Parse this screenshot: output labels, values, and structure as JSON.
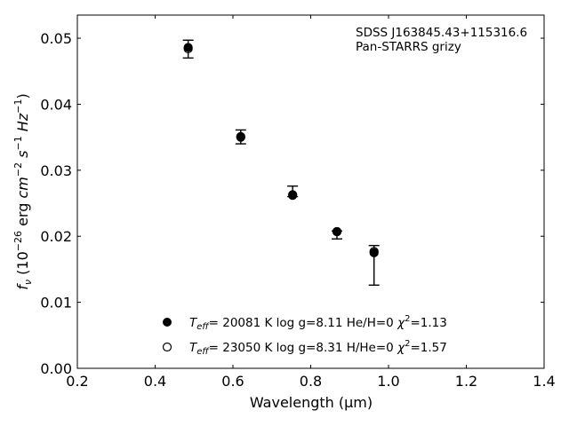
{
  "chart_data": {
    "type": "scatter",
    "xlabel": "Wavelength (μm)",
    "ylabel_parts": {
      "f": "f",
      "nu": "ν",
      "open": " (10",
      "exp1": "−26",
      "mid": " erg ",
      "cm": "cm",
      "exp2": "−2",
      "s": " s",
      "exp3": "−1",
      "hz": " Hz",
      "exp4": "−1",
      "close": ")"
    },
    "xlim": [
      0.2,
      1.4
    ],
    "ylim": [
      0.0,
      0.0535
    ],
    "xticks": [
      {
        "value": 0.2,
        "label": "0.2"
      },
      {
        "value": 0.4,
        "label": "0.4"
      },
      {
        "value": 0.6,
        "label": "0.6"
      },
      {
        "value": 0.8,
        "label": "0.8"
      },
      {
        "value": 1.0,
        "label": "1.0"
      },
      {
        "value": 1.2,
        "label": "1.2"
      },
      {
        "value": 1.4,
        "label": "1.4"
      }
    ],
    "yticks": [
      {
        "value": 0.0,
        "label": "0.00"
      },
      {
        "value": 0.01,
        "label": "0.01"
      },
      {
        "value": 0.02,
        "label": "0.02"
      },
      {
        "value": 0.03,
        "label": "0.03"
      },
      {
        "value": 0.04,
        "label": "0.04"
      },
      {
        "value": 0.05,
        "label": "0.05"
      }
    ],
    "annotation": [
      "SDSS J163845.43+115316.6",
      "Pan-STARRS grizy"
    ],
    "observed": [
      {
        "x": 0.4849,
        "y": 0.0483,
        "ylow": 0.047,
        "yhigh": 0.0497
      },
      {
        "x": 0.6201,
        "y": 0.035,
        "ylow": 0.034,
        "yhigh": 0.0361
      },
      {
        "x": 0.7535,
        "y": 0.0262,
        "ylow": 0.026,
        "yhigh": 0.0276
      },
      {
        "x": 0.8674,
        "y": 0.0205,
        "ylow": 0.0196,
        "yhigh": 0.0208
      },
      {
        "x": 0.9628,
        "y": 0.0177,
        "ylow": 0.0126,
        "yhigh": 0.0186
      }
    ],
    "series": [
      {
        "marker": "filled",
        "label": {
          "T": "T",
          "sub": "eff",
          "rest": "= 20081 K  log g=8.11  He/H=0  ",
          "chi": "χ",
          "sup": "2",
          "val": "=1.13"
        },
        "x": [
          0.4849,
          0.6201,
          0.7535,
          0.8674,
          0.9628
        ],
        "y": [
          0.0486,
          0.0351,
          0.0262,
          0.0207,
          0.0175
        ]
      },
      {
        "marker": "open",
        "label": {
          "T": "T",
          "sub": "eff",
          "rest": "= 23050 K  log g=8.31  H/He=0  ",
          "chi": "χ",
          "sup": "2",
          "val": "=1.57"
        },
        "x": [
          0.4849,
          0.6201,
          0.7535,
          0.8674,
          0.9628
        ],
        "y": [
          0.0484,
          0.035,
          0.0263,
          0.0207,
          0.0177
        ]
      }
    ],
    "legend_position": "lower-center",
    "grid": false,
    "colors": {
      "marker": "#000000",
      "axis": "#000000",
      "background": "#ffffff"
    }
  }
}
